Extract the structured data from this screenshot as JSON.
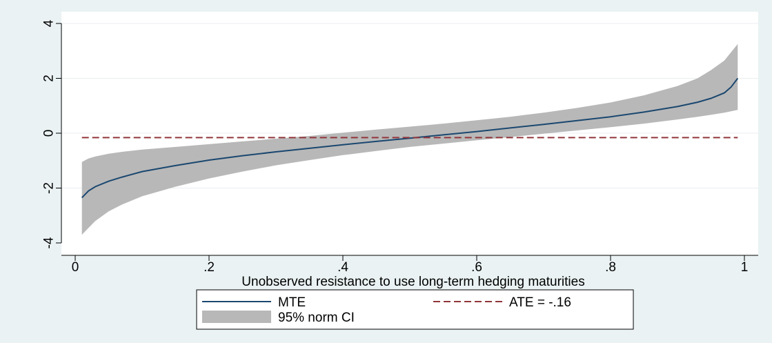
{
  "chart_data": {
    "type": "line",
    "title": "",
    "xlabel": "Unobserved resistance to use long-term hedging maturities",
    "ylabel": "",
    "xlim": [
      0,
      1
    ],
    "ylim": [
      -4,
      4
    ],
    "x_ticks": [
      0,
      0.2,
      0.4,
      0.6,
      0.8,
      1
    ],
    "x_tick_labels": [
      "0",
      ".2",
      ".4",
      ".6",
      ".8",
      "1"
    ],
    "y_ticks": [
      -4,
      -2,
      0,
      2,
      4
    ],
    "y_tick_labels": [
      "-4",
      "-2",
      "0",
      "2",
      "4"
    ],
    "grid": true,
    "legend_position": "bottom",
    "series": [
      {
        "name": "MTE",
        "color": "#1a476f",
        "x": [
          0.01,
          0.02,
          0.03,
          0.05,
          0.07,
          0.1,
          0.15,
          0.2,
          0.25,
          0.3,
          0.35,
          0.4,
          0.45,
          0.5,
          0.55,
          0.6,
          0.65,
          0.7,
          0.75,
          0.8,
          0.85,
          0.9,
          0.93,
          0.95,
          0.97,
          0.98,
          0.99
        ],
        "values": [
          -2.35,
          -2.1,
          -1.95,
          -1.75,
          -1.6,
          -1.4,
          -1.18,
          -0.98,
          -0.82,
          -0.68,
          -0.55,
          -0.42,
          -0.3,
          -0.18,
          -0.06,
          0.06,
          0.19,
          0.32,
          0.46,
          0.6,
          0.77,
          0.97,
          1.13,
          1.27,
          1.47,
          1.68,
          2.0
        ]
      },
      {
        "name": "ATE = -.16",
        "color": "#90353b",
        "style": "dashed",
        "x": [
          0.01,
          0.99
        ],
        "values": [
          -0.16,
          -0.16
        ]
      }
    ],
    "band": {
      "name": "95% norm CI",
      "color": "#b8b8b8",
      "x": [
        0.01,
        0.02,
        0.03,
        0.05,
        0.07,
        0.1,
        0.15,
        0.2,
        0.25,
        0.3,
        0.35,
        0.4,
        0.45,
        0.5,
        0.55,
        0.6,
        0.65,
        0.7,
        0.75,
        0.8,
        0.85,
        0.9,
        0.93,
        0.95,
        0.97,
        0.98,
        0.99
      ],
      "upper": [
        -1.05,
        -0.92,
        -0.85,
        -0.75,
        -0.68,
        -0.6,
        -0.5,
        -0.4,
        -0.3,
        -0.2,
        -0.1,
        0.02,
        0.13,
        0.24,
        0.35,
        0.47,
        0.6,
        0.75,
        0.92,
        1.12,
        1.38,
        1.72,
        2.0,
        2.3,
        2.65,
        2.95,
        3.25
      ],
      "lower": [
        -3.7,
        -3.45,
        -3.2,
        -2.85,
        -2.6,
        -2.3,
        -1.95,
        -1.65,
        -1.4,
        -1.17,
        -0.98,
        -0.8,
        -0.65,
        -0.5,
        -0.38,
        -0.26,
        -0.14,
        -0.02,
        0.1,
        0.22,
        0.35,
        0.5,
        0.6,
        0.67,
        0.75,
        0.8,
        0.85
      ]
    }
  }
}
